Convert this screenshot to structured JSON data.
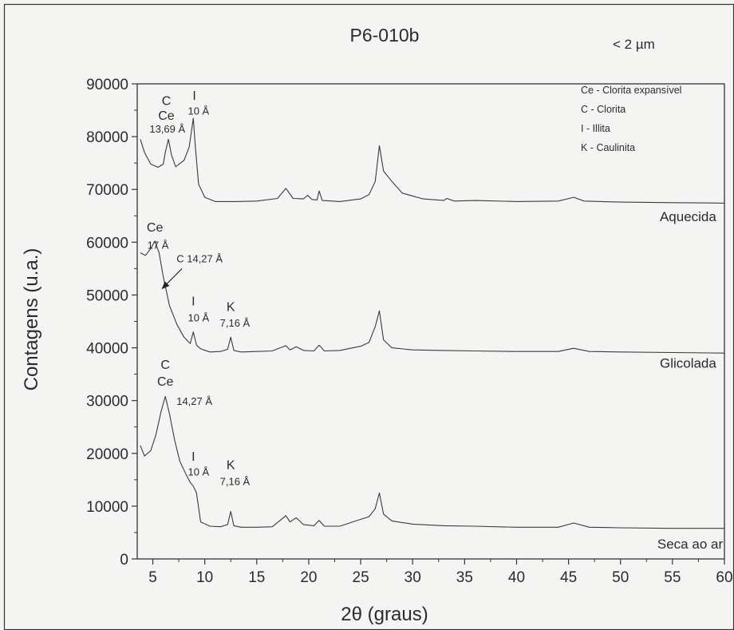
{
  "chart_data": {
    "type": "line",
    "title": "P6-010b",
    "subtitle": "< 2 µm",
    "xlabel": "2θ (graus)",
    "ylabel": "Contagens (u.a.)",
    "xlim": [
      3.5,
      60
    ],
    "ylim": [
      0,
      90000
    ],
    "xticks": [
      5,
      10,
      15,
      20,
      25,
      30,
      35,
      40,
      45,
      50,
      55,
      60
    ],
    "yticks": [
      0,
      10000,
      20000,
      30000,
      40000,
      50000,
      60000,
      70000,
      80000,
      90000
    ],
    "grid": false,
    "legend": {
      "placement": "top-right",
      "entries": [
        "Ce - Clorita expansível",
        "C - Clorita",
        "I - Illita",
        "K - Caulinita"
      ]
    },
    "series": [
      {
        "name": "Aquecida",
        "x": [
          3.8,
          4.2,
          4.8,
          5.5,
          6.0,
          6.2,
          6.5,
          6.8,
          7.2,
          8.0,
          8.5,
          8.9,
          9.1,
          9.4,
          10.0,
          11.0,
          13.0,
          15.0,
          17.0,
          17.8,
          18.5,
          19.5,
          19.9,
          20.3,
          20.8,
          21.0,
          21.3,
          23.0,
          25.0,
          25.8,
          26.4,
          26.8,
          27.2,
          28.0,
          29.0,
          31.0,
          33.0,
          33.3,
          34.0,
          36.0,
          40.0,
          44.0,
          45.5,
          46.5,
          50.0,
          55.0,
          60.0
        ],
        "y": [
          79500,
          77000,
          74800,
          74200,
          74800,
          77000,
          79500,
          76500,
          74300,
          75500,
          78000,
          83500,
          78000,
          71000,
          68500,
          67700,
          67700,
          67800,
          68300,
          70200,
          68300,
          68200,
          68900,
          68100,
          68000,
          69700,
          67900,
          67700,
          68200,
          69000,
          71500,
          78300,
          73500,
          71500,
          69300,
          68200,
          67900,
          68300,
          67800,
          67900,
          67700,
          67800,
          68500,
          67800,
          67600,
          67500,
          67400
        ]
      },
      {
        "name": "Glicolada",
        "x": [
          3.8,
          4.3,
          4.8,
          5.2,
          5.6,
          6.0,
          6.6,
          7.3,
          8.0,
          8.6,
          8.9,
          9.2,
          9.6,
          10.5,
          11.5,
          12.2,
          12.5,
          12.8,
          13.5,
          15.0,
          16.5,
          17.8,
          18.2,
          18.8,
          19.5,
          20.5,
          21.0,
          21.5,
          23.0,
          25.0,
          25.8,
          26.4,
          26.8,
          27.2,
          28.0,
          30.0,
          33.0,
          36.0,
          40.0,
          44.0,
          45.5,
          47.0,
          50.0,
          55.0,
          60.0
        ],
        "y": [
          58000,
          57500,
          58800,
          60200,
          58000,
          53500,
          48000,
          44500,
          42000,
          40800,
          43000,
          40500,
          39800,
          39200,
          39300,
          39700,
          42000,
          39500,
          39200,
          39300,
          39400,
          40400,
          39600,
          40200,
          39500,
          39400,
          40500,
          39400,
          39500,
          40300,
          41000,
          44000,
          47000,
          41500,
          40000,
          39600,
          39500,
          39400,
          39300,
          39300,
          39900,
          39300,
          39200,
          39100,
          39000
        ]
      },
      {
        "name": "Seca ao ar",
        "x": [
          3.8,
          4.2,
          4.8,
          5.3,
          5.8,
          6.2,
          6.6,
          7.1,
          7.6,
          8.2,
          8.6,
          8.9,
          9.2,
          9.6,
          10.5,
          11.5,
          12.2,
          12.5,
          12.8,
          13.5,
          15.0,
          16.5,
          17.8,
          18.2,
          18.8,
          19.5,
          20.5,
          21.0,
          21.5,
          23.0,
          25.0,
          25.8,
          26.4,
          26.8,
          27.2,
          28.0,
          30.0,
          33.0,
          36.0,
          40.0,
          44.0,
          45.5,
          47.0,
          50.0,
          55.0,
          60.0
        ],
        "y": [
          21500,
          19500,
          20500,
          23500,
          28000,
          30800,
          27500,
          22500,
          18500,
          16000,
          14500,
          13800,
          12500,
          7000,
          6200,
          6100,
          6500,
          9000,
          6300,
          6000,
          6000,
          6100,
          8200,
          7000,
          7800,
          6500,
          6300,
          7300,
          6200,
          6200,
          7500,
          8000,
          9500,
          12500,
          8500,
          7200,
          6600,
          6300,
          6200,
          6000,
          6000,
          6800,
          6000,
          5900,
          5800,
          5800
        ]
      }
    ],
    "annotations": [
      {
        "text": "C",
        "x": 6.3,
        "y": 86000
      },
      {
        "text": "Ce",
        "x": 6.3,
        "y": 83200
      },
      {
        "text": "13,69 Å",
        "x": 6.4,
        "y": 80800
      },
      {
        "text": "I",
        "x": 9.0,
        "y": 87000
      },
      {
        "text": "10 Å",
        "x": 9.4,
        "y": 84200
      },
      {
        "text": "Aquecida",
        "x": 56.5,
        "y": 64000
      },
      {
        "text": "Ce",
        "x": 5.2,
        "y": 62000
      },
      {
        "text": "17 Å",
        "x": 5.5,
        "y": 58800
      },
      {
        "text": "C 14,27 Å",
        "x": 9.5,
        "y": 56200
      },
      {
        "text": "I",
        "x": 8.9,
        "y": 48000
      },
      {
        "text": "10 Å",
        "x": 9.4,
        "y": 45000
      },
      {
        "text": "K",
        "x": 12.5,
        "y": 47000
      },
      {
        "text": "7,16 Å",
        "x": 12.9,
        "y": 44000
      },
      {
        "text": "Glicolada",
        "x": 56.5,
        "y": 36200
      },
      {
        "text": "C",
        "x": 6.2,
        "y": 36000
      },
      {
        "text": "Ce",
        "x": 6.2,
        "y": 32800
      },
      {
        "text": "14,27 Å",
        "x": 9.0,
        "y": 29200
      },
      {
        "text": "I",
        "x": 8.9,
        "y": 18600
      },
      {
        "text": "10 Å",
        "x": 9.4,
        "y": 15800
      },
      {
        "text": "K",
        "x": 12.5,
        "y": 17000
      },
      {
        "text": "7,16 Å",
        "x": 12.9,
        "y": 14000
      },
      {
        "text": "Seca ao ar",
        "x": 56.7,
        "y": 2000
      }
    ],
    "arrows": [
      {
        "from_x": 7.8,
        "from_y": 55000,
        "to_x": 5.9,
        "to_y": 51200
      }
    ]
  }
}
